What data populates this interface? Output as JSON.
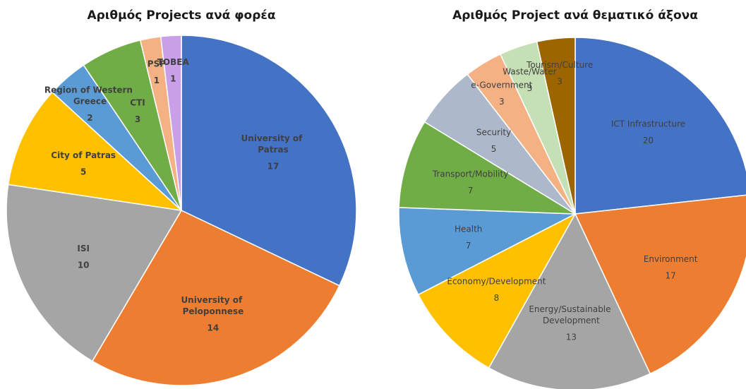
{
  "chart_data": [
    {
      "type": "pie",
      "title": "Αριθμός Projects ανά φορέα",
      "categories": [
        "University of Patras",
        "University of Peloponnese",
        "ISI",
        "City of Patras",
        "Region of Western Greece",
        "CTI",
        "PSP",
        "TOBEA"
      ],
      "values": [
        17,
        14,
        10,
        5,
        2,
        3,
        1,
        1
      ],
      "colors": [
        "#4472c4",
        "#ed7d31",
        "#a5a5a5",
        "#ffc000",
        "#5b9bd5",
        "#70ad47",
        "#f4b183",
        "#c9a0e8"
      ],
      "bold_labels": true
    },
    {
      "type": "pie",
      "title": "Αριθμός Project ανά θεματικό άξονα",
      "categories": [
        "ICT Infrastructure",
        "Environment",
        "Energy/Sustainable Development",
        "Economy/Development",
        "Health",
        "Transport/Mobility",
        "Security",
        "e-Government",
        "Waste/Water",
        "Tourism/Culture"
      ],
      "values": [
        20,
        17,
        13,
        8,
        7,
        7,
        5,
        3,
        3,
        3
      ],
      "colors": [
        "#4472c4",
        "#ed7d31",
        "#a5a5a5",
        "#ffc000",
        "#5b9bd5",
        "#70ad47",
        "#adb9ca",
        "#f4b183",
        "#c5e0b4",
        "#9c6500"
      ],
      "bold_labels": false
    }
  ]
}
